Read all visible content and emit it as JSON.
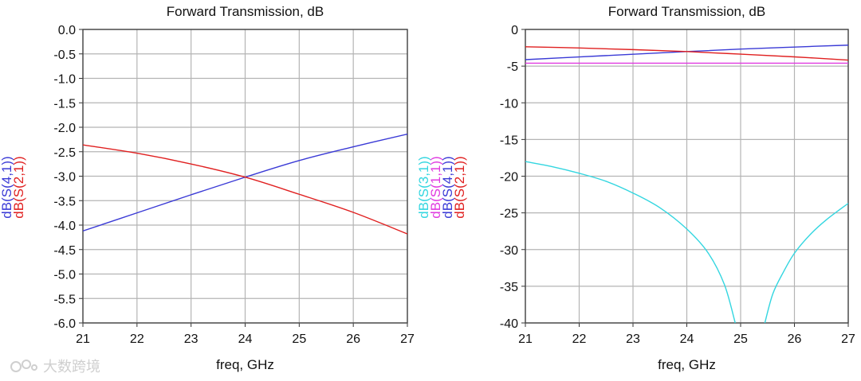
{
  "watermark": {
    "text": "大数跨境"
  },
  "chart_data": [
    {
      "type": "line",
      "title": "Forward Transmission, dB",
      "xlabel": "freq, GHz",
      "xlim": [
        21,
        27
      ],
      "ylim": [
        -6.0,
        0.0
      ],
      "xticks": [
        21,
        22,
        23,
        24,
        25,
        26,
        27
      ],
      "yticks": [
        "0.0",
        "-0.5",
        "-1.0",
        "-1.5",
        "-2.0",
        "-2.5",
        "-3.0",
        "-3.5",
        "-4.0",
        "-4.5",
        "-5.0",
        "-5.5",
        "-6.0"
      ],
      "grid": true,
      "ylabels": [
        {
          "text": "dB(S(4,1))",
          "color": "#3a3ad6"
        },
        {
          "text": "dB(S(2,1))",
          "color": "#e02020"
        }
      ],
      "series": [
        {
          "name": "dB(S(4,1))",
          "color": "#3a3ad6",
          "x": [
            21,
            22,
            23,
            24,
            25,
            26,
            27
          ],
          "y": [
            -4.12,
            -3.75,
            -3.38,
            -3.02,
            -2.68,
            -2.4,
            -2.14
          ]
        },
        {
          "name": "dB(S(2,1))",
          "color": "#e02020",
          "x": [
            21,
            22,
            23,
            24,
            25,
            26,
            27
          ],
          "y": [
            -2.36,
            -2.53,
            -2.75,
            -3.02,
            -3.37,
            -3.74,
            -4.18
          ]
        }
      ]
    },
    {
      "type": "line",
      "title": "Forward Transmission, dB",
      "xlabel": "freq, GHz",
      "xlim": [
        21,
        27
      ],
      "ylim": [
        -40,
        0
      ],
      "xticks": [
        21,
        22,
        23,
        24,
        25,
        26,
        27
      ],
      "yticks": [
        "0",
        "-5",
        "-10",
        "-15",
        "-20",
        "-25",
        "-30",
        "-35",
        "-40"
      ],
      "grid": true,
      "ylabels": [
        {
          "text": "dB(S(3,1))",
          "color": "#33d6e0"
        },
        {
          "text": "dB(S(1,1))",
          "color": "#e03ae0"
        },
        {
          "text": "dB(S(4,1))",
          "color": "#3a3ad6"
        },
        {
          "text": "dB(S(2,1))",
          "color": "#e02020"
        }
      ],
      "series": [
        {
          "name": "dB(S(4,1))",
          "color": "#3a3ad6",
          "x": [
            21,
            22,
            23,
            24,
            25,
            26,
            27
          ],
          "y": [
            -4.12,
            -3.75,
            -3.38,
            -3.02,
            -2.68,
            -2.4,
            -2.14
          ]
        },
        {
          "name": "dB(S(2,1))",
          "color": "#e02020",
          "x": [
            21,
            22,
            23,
            24,
            25,
            26,
            27
          ],
          "y": [
            -2.36,
            -2.53,
            -2.75,
            -3.02,
            -3.37,
            -3.74,
            -4.18
          ]
        },
        {
          "name": "dB(S(1,1))",
          "color": "#e03ae0",
          "x": [
            21,
            27
          ],
          "y": [
            -4.6,
            -4.6
          ]
        },
        {
          "name": "dB(S(3,1))",
          "color": "#33d6e0",
          "x": [
            21,
            21.5,
            22,
            22.5,
            23,
            23.5,
            24,
            24.4,
            24.7,
            24.9
          ],
          "y": [
            -18.0,
            -18.7,
            -19.6,
            -20.7,
            -22.3,
            -24.3,
            -27.2,
            -30.5,
            -34.8,
            -40.0
          ]
        },
        {
          "name": "dB(S(3,1))",
          "color": "#33d6e0",
          "x": [
            25.45,
            25.6,
            25.8,
            26.0,
            26.3,
            26.6,
            27.0
          ],
          "y": [
            -40.0,
            -36.0,
            -33.0,
            -30.5,
            -27.9,
            -25.9,
            -23.7
          ]
        }
      ]
    }
  ]
}
